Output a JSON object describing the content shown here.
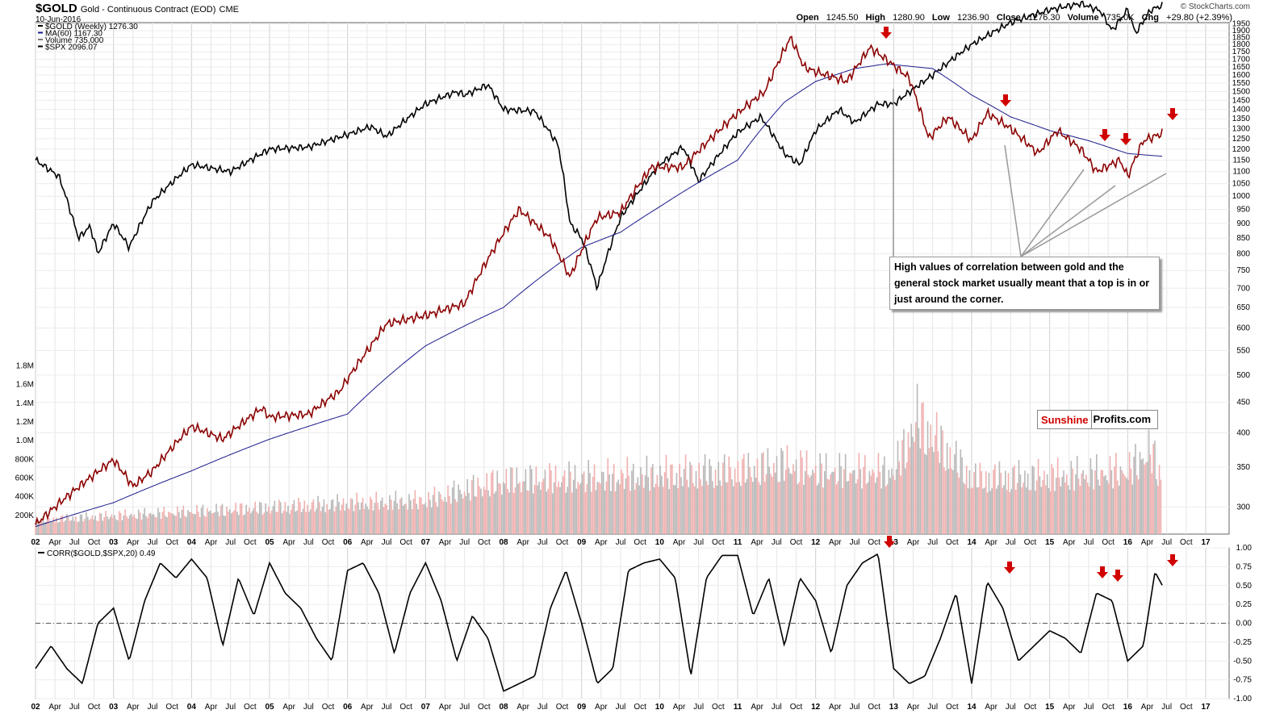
{
  "header": {
    "symbol": "$GOLD",
    "subtitle": "Gold - Continuous Contract (EOD)",
    "exchange": "CME",
    "date": "10-Jun-2016",
    "brand": "© StockCharts.com",
    "stats": {
      "open_label": "Open",
      "open": "1245.50",
      "high_label": "High",
      "high": "1280.90",
      "low_label": "Low",
      "low": "1236.90",
      "close_label": "Close",
      "close": "1276.30",
      "volume_label": "Volume",
      "volume": "735.0K",
      "chg_label": "Chg",
      "chg": "+29.80 (+2.39%)"
    }
  },
  "legend": [
    {
      "text": "$GOLD (Weekly) 1276.30",
      "color": "#000000"
    },
    {
      "text": "MA(60) 1167.30",
      "color": "#1a1a8c"
    },
    {
      "text": "Volume 735,000",
      "color": "#777777"
    },
    {
      "text": "$SPX 2096.07",
      "color": "#000000"
    }
  ],
  "corr_legend": "CORR($GOLD,$SPX,20) 0.49",
  "callout_text": "High values of correlation between gold and the general stock market usually meant that a top is in or just around the corner.",
  "logo": {
    "part1": "Sunshine",
    "part2": "Profits.com"
  },
  "chart_data": [
    {
      "type": "line",
      "title": "$GOLD Gold - Continuous Contract (EOD) CME",
      "scale": "log",
      "x_ticks": [
        "02",
        "Apr",
        "Jul",
        "Oct",
        "03",
        "Apr",
        "Jul",
        "Oct",
        "04",
        "Apr",
        "Jul",
        "Oct",
        "05",
        "Apr",
        "Jul",
        "Oct",
        "06",
        "Apr",
        "Jul",
        "Oct",
        "07",
        "Apr",
        "Jul",
        "Oct",
        "08",
        "Apr",
        "Jul",
        "Oct",
        "09",
        "Apr",
        "Jul",
        "Oct",
        "10",
        "Apr",
        "Jul",
        "Oct",
        "11",
        "Apr",
        "Jul",
        "Oct",
        "12",
        "Apr",
        "Jul",
        "Oct",
        "13",
        "Apr",
        "Jul",
        "Oct",
        "14",
        "Apr",
        "Jul",
        "Oct",
        "15",
        "Apr",
        "Jul",
        "Oct",
        "16",
        "Apr",
        "Jul",
        "Oct",
        "17"
      ],
      "right_axis_ticks": [
        "1950",
        "1900",
        "1850",
        "1800",
        "1750",
        "1700",
        "1650",
        "1600",
        "1550",
        "1500",
        "1450",
        "1400",
        "1350",
        "1300",
        "1250",
        "1200",
        "1150",
        "1100",
        "1050",
        "1000",
        "950",
        "900",
        "850",
        "800",
        "750",
        "700",
        "650",
        "600",
        "550",
        "500",
        "450",
        "400",
        "350",
        "300"
      ],
      "left_axis_ticks": [
        "1.8M",
        "1.6M",
        "1.4M",
        "1.2M",
        "1.0M",
        "800K",
        "600K",
        "400K",
        "200K"
      ],
      "ylim": [
        270,
        1960
      ],
      "series": [
        {
          "name": "$GOLD (Weekly)",
          "x": [
            2002.0,
            2002.5,
            2003.0,
            2003.25,
            2003.5,
            2004.0,
            2004.4,
            2004.9,
            2005.0,
            2005.5,
            2005.9,
            2006.3,
            2006.5,
            2007.0,
            2007.5,
            2008.2,
            2008.6,
            2008.85,
            2009.2,
            2009.5,
            2009.9,
            2010.3,
            2010.6,
            2011.0,
            2011.35,
            2011.68,
            2011.85,
            2012.0,
            2012.4,
            2012.7,
            2012.9,
            2013.2,
            2013.45,
            2013.7,
            2014.0,
            2014.2,
            2014.5,
            2014.85,
            2015.1,
            2015.4,
            2015.6,
            2015.9,
            2016.0,
            2016.2,
            2016.45
          ],
          "values": [
            280,
            320,
            360,
            325,
            345,
            410,
            390,
            440,
            425,
            430,
            470,
            560,
            610,
            630,
            660,
            950,
            850,
            730,
            920,
            940,
            1120,
            1120,
            1230,
            1380,
            1500,
            1850,
            1650,
            1620,
            1560,
            1780,
            1700,
            1580,
            1250,
            1360,
            1240,
            1380,
            1300,
            1180,
            1290,
            1200,
            1100,
            1150,
            1080,
            1240,
            1276.3
          ]
        },
        {
          "name": "MA(60)",
          "x": [
            2002.0,
            2003.0,
            2004.0,
            2005.0,
            2006.0,
            2007.0,
            2008.0,
            2009.0,
            2009.5,
            2010.0,
            2011.0,
            2011.6,
            2012.0,
            2012.5,
            2012.9,
            2013.5,
            2014.0,
            2014.5,
            2015.0,
            2015.5,
            2016.0,
            2016.45
          ],
          "values": [
            278,
            305,
            345,
            390,
            430,
            560,
            650,
            820,
            870,
            960,
            1150,
            1440,
            1560,
            1640,
            1670,
            1640,
            1480,
            1360,
            1290,
            1240,
            1180,
            1167.3
          ]
        },
        {
          "name": "$SPX",
          "x": [
            2002.0,
            2002.3,
            2002.55,
            2002.7,
            2002.8,
            2003.0,
            2003.2,
            2003.5,
            2004.0,
            2004.5,
            2005.0,
            2005.5,
            2006.0,
            2006.3,
            2006.5,
            2007.0,
            2007.4,
            2007.5,
            2007.8,
            2008.0,
            2008.4,
            2008.7,
            2008.85,
            2009.0,
            2009.2,
            2009.5,
            2010.0,
            2010.3,
            2010.5,
            2011.0,
            2011.3,
            2011.6,
            2011.8,
            2012.0,
            2012.3,
            2012.5,
            2012.8,
            2013.0,
            2013.5,
            2014.0,
            2014.5,
            2015.0,
            2015.4,
            2015.65,
            2015.8,
            2016.0,
            2016.1,
            2016.3,
            2016.45
          ],
          "values": [
            1150,
            1080,
            850,
            890,
            800,
            900,
            820,
            980,
            1130,
            1100,
            1200,
            1210,
            1270,
            1310,
            1260,
            1430,
            1500,
            1480,
            1540,
            1400,
            1390,
            1220,
            900,
            850,
            700,
            920,
            1130,
            1210,
            1060,
            1280,
            1360,
            1180,
            1130,
            1290,
            1400,
            1330,
            1430,
            1430,
            1600,
            1800,
            1960,
            2060,
            2110,
            2050,
            1900,
            2060,
            1880,
            2060,
            2096.07
          ]
        },
        {
          "name": "Volume",
          "x": [
            2002.0,
            2003.0,
            2004.0,
            2005.0,
            2006.0,
            2007.0,
            2007.5,
            2008.0,
            2009.0,
            2010.0,
            2011.0,
            2011.6,
            2012.0,
            2013.0,
            2013.3,
            2014.0,
            2015.0,
            2016.0,
            2016.3,
            2016.45
          ],
          "values": [
            200000,
            260000,
            320000,
            380000,
            440000,
            480000,
            630000,
            770000,
            800000,
            850000,
            900000,
            1000000,
            900000,
            880000,
            1650000,
            800000,
            820000,
            900000,
            1200000,
            735000
          ]
        }
      ],
      "annotations": [
        "down arrow at Oct 2012 top",
        "down arrow at Mar 2014",
        "down arrow at Jun 2015",
        "down arrow at Aug 2015",
        "down arrow at May 2016"
      ]
    },
    {
      "type": "line",
      "title": "CORR($GOLD,$SPX,20) 0.49",
      "ylim": [
        -1.0,
        1.0
      ],
      "y_ticks": [
        "1.00",
        "0.75",
        "0.50",
        "0.25",
        "0.00",
        "-0.25",
        "-0.50",
        "-0.75",
        "-1.00"
      ],
      "x_ticks": [
        "02",
        "Apr",
        "Jul",
        "Oct",
        "03",
        "Apr",
        "Jul",
        "Oct",
        "04",
        "Apr",
        "Jul",
        "Oct",
        "05",
        "Apr",
        "Jul",
        "Oct",
        "06",
        "Apr",
        "Jul",
        "Oct",
        "07",
        "Apr",
        "Jul",
        "Oct",
        "08",
        "Apr",
        "Jul",
        "Oct",
        "09",
        "Apr",
        "Jul",
        "Oct",
        "10",
        "Apr",
        "Jul",
        "Oct",
        "11",
        "Apr",
        "Jul",
        "Oct",
        "12",
        "Apr",
        "Jul",
        "Oct",
        "13",
        "Apr",
        "Jul",
        "Oct",
        "14",
        "Apr",
        "Jul",
        "Oct",
        "15",
        "Apr",
        "Jul",
        "Oct",
        "16",
        "Apr",
        "Jul",
        "Oct",
        "17"
      ],
      "series": [
        {
          "name": "CORR($GOLD,$SPX,20)",
          "x": [
            2002.0,
            2002.2,
            2002.4,
            2002.6,
            2002.8,
            2003.0,
            2003.2,
            2003.4,
            2003.6,
            2003.8,
            2004.0,
            2004.2,
            2004.4,
            2004.6,
            2004.8,
            2005.0,
            2005.2,
            2005.4,
            2005.6,
            2005.8,
            2006.0,
            2006.2,
            2006.4,
            2006.6,
            2006.8,
            2007.0,
            2007.2,
            2007.4,
            2007.6,
            2007.8,
            2008.0,
            2008.2,
            2008.4,
            2008.6,
            2008.8,
            2009.0,
            2009.2,
            2009.4,
            2009.6,
            2009.8,
            2010.0,
            2010.2,
            2010.4,
            2010.6,
            2010.8,
            2011.0,
            2011.2,
            2011.4,
            2011.6,
            2011.8,
            2012.0,
            2012.2,
            2012.4,
            2012.6,
            2012.8,
            2013.0,
            2013.2,
            2013.4,
            2013.6,
            2013.8,
            2014.0,
            2014.2,
            2014.4,
            2014.6,
            2014.8,
            2015.0,
            2015.2,
            2015.4,
            2015.6,
            2015.8,
            2016.0,
            2016.2,
            2016.35,
            2016.45
          ],
          "values": [
            -0.6,
            -0.3,
            -0.6,
            -0.8,
            0.0,
            0.2,
            -0.5,
            0.3,
            0.8,
            0.6,
            0.85,
            0.6,
            -0.3,
            0.6,
            0.1,
            0.8,
            0.4,
            0.2,
            -0.2,
            -0.5,
            0.7,
            0.8,
            0.4,
            -0.4,
            0.4,
            0.8,
            0.3,
            -0.5,
            0.1,
            -0.2,
            -0.9,
            -0.8,
            -0.7,
            0.2,
            0.7,
            0.0,
            -0.8,
            -0.6,
            0.7,
            0.8,
            0.85,
            0.6,
            -0.7,
            0.6,
            0.9,
            0.9,
            0.1,
            0.6,
            -0.3,
            0.6,
            0.3,
            -0.4,
            0.5,
            0.8,
            0.92,
            -0.6,
            -0.8,
            -0.7,
            -0.2,
            0.4,
            -0.8,
            0.55,
            0.2,
            -0.5,
            -0.3,
            -0.1,
            -0.2,
            -0.4,
            0.4,
            0.3,
            -0.5,
            -0.3,
            0.68,
            0.49
          ]
        }
      ],
      "annotations": [
        "down arrow at Oct 2012",
        "down arrow at Mar 2014",
        "down arrow at Jun 2015",
        "down arrow at Aug 2015",
        "down arrow at May 2016"
      ]
    }
  ]
}
